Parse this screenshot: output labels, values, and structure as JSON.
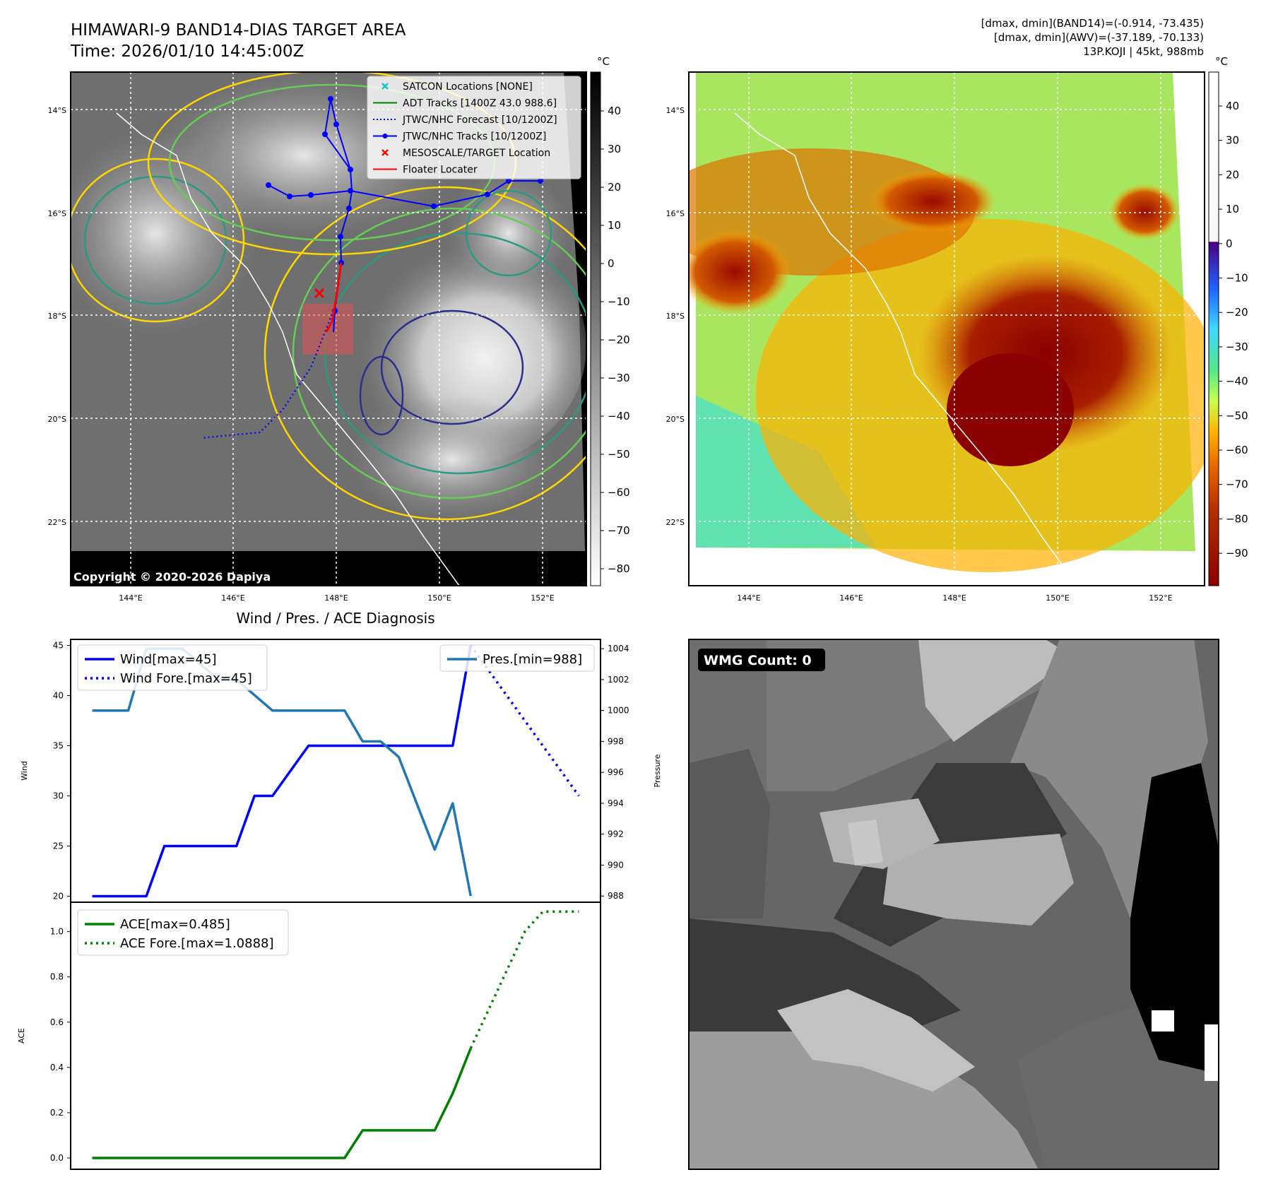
{
  "header": {
    "title_line1": "HIMAWARI-9 BAND14-DIAS TARGET AREA",
    "title_line2": "Time: 2026/01/10 14:45:00Z",
    "stats_line1": "[dmax, dmin](BAND14)=(-0.914, -73.435)",
    "stats_line2": "[dmax, dmin](AWV)=(-37.189, -70.133)",
    "stats_line3": "13P.KOJI | 45kt, 988mb"
  },
  "map_axes": {
    "lat_labels": [
      "14°S",
      "16°S",
      "18°S",
      "20°S",
      "22°S"
    ],
    "lon_labels": [
      "144°E",
      "146°E",
      "148°E",
      "150°E",
      "152°E"
    ],
    "copyright": "Copyright © 2020-2026 Dapiya"
  },
  "colorbar_left": {
    "unit": "°C",
    "ticks": [
      "40",
      "30",
      "20",
      "10",
      "0",
      "−10",
      "−20",
      "−30",
      "−40",
      "−50",
      "−60",
      "−70",
      "−80"
    ]
  },
  "colorbar_right": {
    "unit": "°C",
    "ticks": [
      "40",
      "30",
      "20",
      "10",
      "0",
      "−10",
      "−20",
      "−30",
      "−40",
      "−50",
      "−60",
      "−70",
      "−80",
      "−90"
    ]
  },
  "map_legend": [
    {
      "label": "SATCON Locations [NONE]",
      "color": "#17becf",
      "marker": "x-icon"
    },
    {
      "label": "ADT Tracks [1400Z 43.0 988.6]",
      "color": "#008000",
      "marker": "solid-line"
    },
    {
      "label": "JTWC/NHC Forecast [10/1200Z]",
      "color": "#0000ff",
      "marker": "dotted-line"
    },
    {
      "label": "JTWC/NHC Tracks [10/1200Z]",
      "color": "#0000ff",
      "marker": "line-dot"
    },
    {
      "label": "MESOSCALE/TARGET Location",
      "color": "#ff0000",
      "marker": "x-icon"
    },
    {
      "label": "Floater Locater",
      "color": "#ff0000",
      "marker": "solid-line"
    }
  ],
  "wmg": {
    "label": "WMG Count: 0"
  },
  "chart_data": [
    {
      "type": "line",
      "title": "Wind / Pres. / ACE Diagnosis",
      "ylabel": "Wind",
      "y2label": "Pressure",
      "ylim": [
        19.4,
        45.6
      ],
      "y2lim": [
        987.6,
        1004.6
      ],
      "yticks": [
        "20",
        "25",
        "30",
        "35",
        "40",
        "45"
      ],
      "y2ticks": [
        "988",
        "990",
        "992",
        "994",
        "996",
        "998",
        "1000",
        "1002",
        "1004"
      ],
      "legend_left": [
        "Wind[max=45]",
        "Wind Fore.[max=45]"
      ],
      "legend_right": [
        "Pres.[min=988]"
      ],
      "series": [
        {
          "name": "Wind[max=45]",
          "axis": "left",
          "color": "#0000ff",
          "x": [
            0,
            3,
            4,
            8,
            9,
            10,
            12,
            20,
            21
          ],
          "y": [
            20,
            20,
            25,
            25,
            30,
            30,
            35,
            35,
            45
          ]
        },
        {
          "name": "Wind Fore.[max=45]",
          "axis": "left",
          "color": "#0000ff",
          "dotted": true,
          "x": [
            21,
            27
          ],
          "y": [
            45,
            30
          ]
        },
        {
          "name": "Pres.[min=988]",
          "axis": "right",
          "color": "#1f77b4",
          "x": [
            0,
            2,
            3,
            5,
            7,
            8,
            10,
            14,
            15,
            16,
            17,
            18,
            19,
            20,
            21
          ],
          "y": [
            1000,
            1000,
            1004,
            1004,
            1002,
            1002,
            1000,
            1000,
            998,
            998,
            997,
            994,
            991,
            994,
            988
          ]
        }
      ]
    },
    {
      "type": "line",
      "ylabel": "ACE",
      "ylim": [
        -0.05,
        1.13
      ],
      "yticks": [
        "0.0",
        "0.2",
        "0.4",
        "0.6",
        "0.8",
        "1.0"
      ],
      "legend_left": [
        "ACE[max=0.485]",
        "ACE Fore.[max=1.0888]"
      ],
      "series": [
        {
          "name": "ACE[max=0.485]",
          "color": "#008000",
          "x": [
            0,
            14,
            15,
            19,
            20,
            21
          ],
          "y": [
            0,
            0,
            0.122,
            0.122,
            0.285,
            0.485
          ]
        },
        {
          "name": "ACE Fore.[max=1.0888]",
          "color": "#008000",
          "dotted": true,
          "x": [
            21,
            24,
            25,
            27
          ],
          "y": [
            0.485,
            1.0,
            1.0888,
            1.0888
          ]
        }
      ]
    }
  ]
}
